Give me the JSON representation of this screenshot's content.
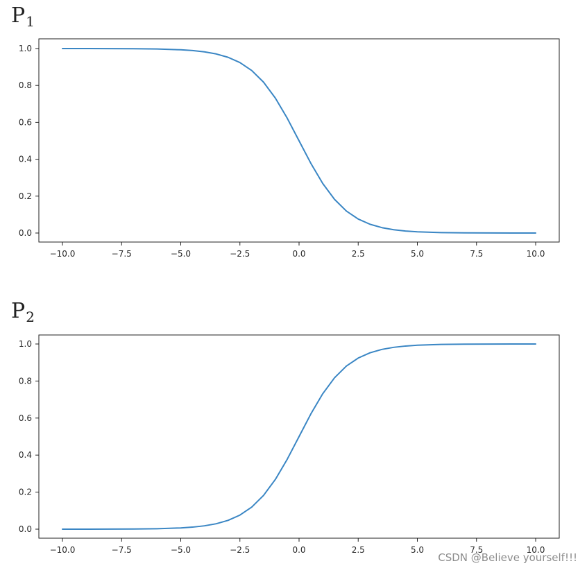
{
  "panels": [
    {
      "label": "P",
      "subscript": "1"
    },
    {
      "label": "P",
      "subscript": "2"
    }
  ],
  "watermark": "CSDN @Believe yourself!!!",
  "chart_data": [
    {
      "type": "line",
      "title": "",
      "xlabel": "",
      "ylabel": "",
      "xlim": [
        -10.0,
        10.0
      ],
      "ylim": [
        0,
        1
      ],
      "grid": false,
      "xticks": [
        "−10.0",
        "−7.5",
        "−5.0",
        "−2.5",
        "0.0",
        "2.5",
        "5.0",
        "7.5",
        "10.0"
      ],
      "yticks": [
        "0.0",
        "0.2",
        "0.4",
        "0.6",
        "0.8",
        "1.0"
      ],
      "series": [
        {
          "color": "#3a86c4",
          "x": [
            -10,
            -9,
            -8,
            -7,
            -6,
            -5,
            -4.5,
            -4,
            -3.5,
            -3,
            -2.5,
            -2,
            -1.5,
            -1,
            -0.5,
            0,
            0.5,
            1,
            1.5,
            2,
            2.5,
            3,
            3.5,
            4,
            4.5,
            5,
            6,
            7,
            8,
            9,
            10
          ],
          "y": [
            1.0,
            0.9999,
            0.9997,
            0.9991,
            0.9975,
            0.9933,
            0.989,
            0.982,
            0.9707,
            0.9526,
            0.9241,
            0.8808,
            0.8176,
            0.7311,
            0.6225,
            0.5,
            0.3775,
            0.2689,
            0.1824,
            0.1192,
            0.0759,
            0.0474,
            0.0293,
            0.018,
            0.011,
            0.0067,
            0.0025,
            0.0009,
            0.0003,
            0.0001,
            0.0
          ]
        }
      ]
    },
    {
      "type": "line",
      "title": "",
      "xlabel": "",
      "ylabel": "",
      "xlim": [
        -10.0,
        10.0
      ],
      "ylim": [
        0,
        1
      ],
      "grid": false,
      "xticks": [
        "−10.0",
        "−7.5",
        "−5.0",
        "−2.5",
        "0.0",
        "2.5",
        "5.0",
        "7.5",
        "10.0"
      ],
      "yticks": [
        "0.0",
        "0.2",
        "0.4",
        "0.6",
        "0.8",
        "1.0"
      ],
      "series": [
        {
          "color": "#3a86c4",
          "x": [
            -10,
            -9,
            -8,
            -7,
            -6,
            -5,
            -4.5,
            -4,
            -3.5,
            -3,
            -2.5,
            -2,
            -1.5,
            -1,
            -0.5,
            0,
            0.5,
            1,
            1.5,
            2,
            2.5,
            3,
            3.5,
            4,
            4.5,
            5,
            6,
            7,
            8,
            9,
            10
          ],
          "y": [
            0.0,
            0.0001,
            0.0003,
            0.0009,
            0.0025,
            0.0067,
            0.011,
            0.018,
            0.0293,
            0.0474,
            0.0759,
            0.1192,
            0.1824,
            0.2689,
            0.3775,
            0.5,
            0.6225,
            0.7311,
            0.8176,
            0.8808,
            0.9241,
            0.9526,
            0.9707,
            0.982,
            0.989,
            0.9933,
            0.9975,
            0.9991,
            0.9997,
            0.9999,
            1.0
          ]
        }
      ]
    }
  ]
}
